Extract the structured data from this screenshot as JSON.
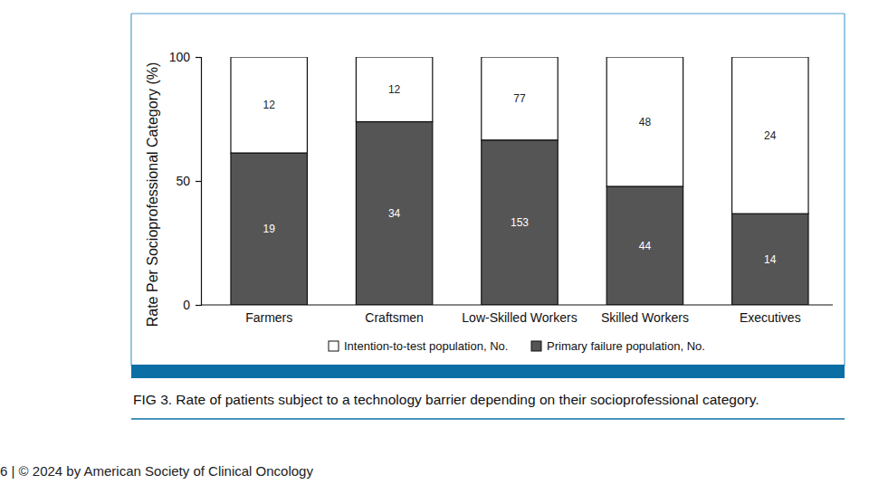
{
  "chart_data": {
    "type": "bar",
    "title": "FIG 3. Rate of patients subject to a technology barrier depending on their socioprofessional category.",
    "y_label": "Rate Per Socioprofessional Category (%)",
    "annotations": [
      "6 | © 2024 by American Society of Clinical Oncology"
    ],
    "categories": [
      "Farmers",
      "Craftsmen",
      "Low-Skilled Workers",
      "Skilled Workers",
      "Executives"
    ],
    "series": [
      {
        "name": "Primary failure population, No.",
        "color": "#555555",
        "values": [
          61.3,
          73.9,
          66.5,
          47.8,
          36.8
        ],
        "counts": [
          19,
          34,
          153,
          44,
          14
        ]
      },
      {
        "name": "Intention-to-test population, No.",
        "color": "#ffffff",
        "values": [
          38.7,
          26.1,
          33.5,
          52.2,
          63.2
        ],
        "counts": [
          12,
          12,
          77,
          48,
          24
        ]
      }
    ],
    "ylim": [
      0,
      100
    ],
    "yticks": [
      0,
      50,
      100
    ],
    "stacked": true,
    "grid": false,
    "legend": "bottom"
  }
}
